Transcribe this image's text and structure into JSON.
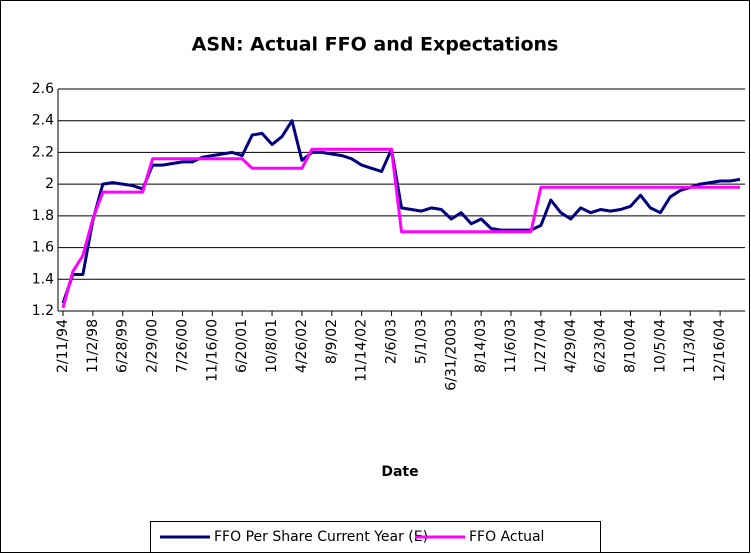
{
  "chart_data": {
    "type": "line",
    "title": "ASN: Actual FFO and Expectations",
    "x_label": "Date",
    "categories": [
      "2/11/94",
      null,
      null,
      "11/2/98",
      null,
      null,
      "6/28/99",
      null,
      null,
      "2/29/00",
      null,
      null,
      "7/26/00",
      null,
      null,
      "11/16/00",
      null,
      null,
      "6/20/01",
      null,
      null,
      "10/8/01",
      null,
      null,
      "4/26/02",
      null,
      null,
      "8/9/02",
      null,
      null,
      "11/14/02",
      null,
      null,
      "2/6/03",
      null,
      null,
      "5/1/03",
      null,
      null,
      "6/31/2003",
      null,
      null,
      "8/14/03",
      null,
      null,
      "11/6/03",
      null,
      null,
      "1/27/04",
      null,
      null,
      "4/29/04",
      null,
      null,
      "6/23/04",
      null,
      null,
      "8/10/04",
      null,
      null,
      "10/5/04",
      null,
      null,
      "11/3/04",
      null,
      null,
      "12/16/04",
      null,
      null
    ],
    "series": [
      {
        "name": "FFO Per Share Current Year (E)",
        "color": "#000080",
        "values": [
          1.25,
          1.43,
          1.43,
          1.77,
          2.0,
          2.01,
          2.0,
          1.99,
          1.97,
          2.12,
          2.12,
          2.13,
          2.14,
          2.14,
          2.17,
          2.18,
          2.19,
          2.2,
          2.18,
          2.31,
          2.32,
          2.25,
          2.3,
          2.4,
          2.15,
          2.2,
          2.2,
          2.19,
          2.18,
          2.16,
          2.12,
          2.1,
          2.08,
          2.22,
          1.85,
          1.84,
          1.83,
          1.85,
          1.84,
          1.78,
          1.82,
          1.75,
          1.78,
          1.72,
          1.71,
          1.71,
          1.71,
          1.71,
          1.74,
          1.9,
          1.82,
          1.78,
          1.85,
          1.82,
          1.84,
          1.83,
          1.84,
          1.86,
          1.93,
          1.85,
          1.82,
          1.92,
          1.96,
          1.98,
          2.0,
          2.01,
          2.02,
          2.02,
          2.03
        ]
      },
      {
        "name": "FFO Actual",
        "color": "#ff00ff",
        "values": [
          1.22,
          1.45,
          1.55,
          1.78,
          1.95,
          1.95,
          1.95,
          1.95,
          1.95,
          2.16,
          2.16,
          2.16,
          2.16,
          2.16,
          2.16,
          2.16,
          2.16,
          2.16,
          2.16,
          2.1,
          2.1,
          2.1,
          2.1,
          2.1,
          2.1,
          2.22,
          2.22,
          2.22,
          2.22,
          2.22,
          2.22,
          2.22,
          2.22,
          2.22,
          1.7,
          1.7,
          1.7,
          1.7,
          1.7,
          1.7,
          1.7,
          1.7,
          1.7,
          1.7,
          1.7,
          1.7,
          1.7,
          1.7,
          1.98,
          1.98,
          1.98,
          1.98,
          1.98,
          1.98,
          1.98,
          1.98,
          1.98,
          1.98,
          1.98,
          1.98,
          1.98,
          1.98,
          1.98,
          1.98,
          1.98,
          1.98,
          1.98,
          1.98,
          1.98
        ]
      }
    ],
    "ylim": [
      1.2,
      2.6
    ],
    "yticks": [
      1.2,
      1.4,
      1.6,
      1.8,
      2,
      2.2,
      2.4,
      2.6
    ],
    "grid": true,
    "legend": "bottom"
  }
}
